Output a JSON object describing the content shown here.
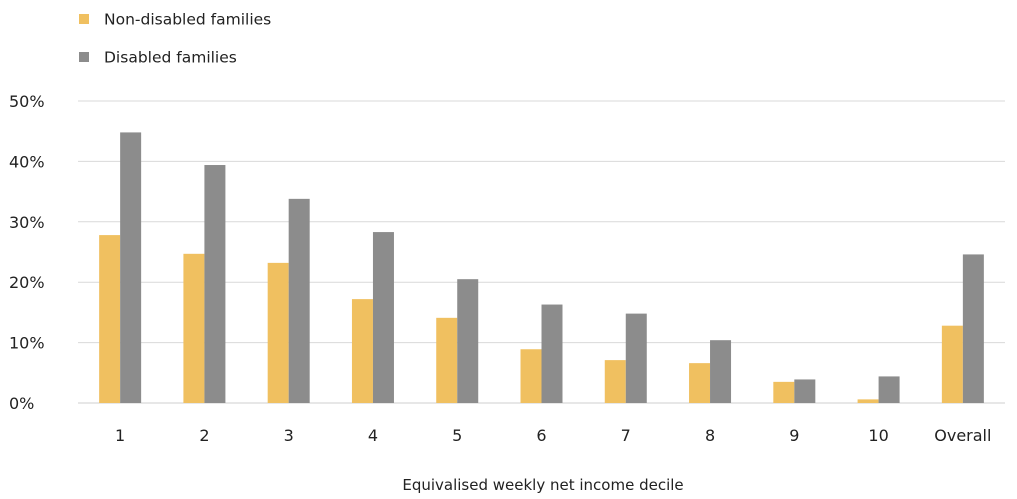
{
  "chart_data": {
    "type": "bar",
    "categories": [
      "1",
      "2",
      "3",
      "4",
      "5",
      "6",
      "7",
      "8",
      "9",
      "10",
      "Overall"
    ],
    "series": [
      {
        "name": "Non-disabled families",
        "color": "#f0c060",
        "values": [
          27.8,
          24.7,
          23.2,
          17.2,
          14.1,
          8.9,
          7.1,
          6.6,
          3.5,
          0.6,
          12.8
        ]
      },
      {
        "name": "Disabled families",
        "color": "#8c8c8c",
        "values": [
          44.8,
          39.4,
          33.8,
          28.3,
          20.5,
          16.3,
          14.8,
          10.4,
          3.9,
          4.4,
          24.6
        ]
      }
    ],
    "xlabel": "Equivalised weekly net income decile",
    "ylabel": "",
    "ylim": [
      0,
      50
    ],
    "yticks": [
      0,
      10,
      20,
      30,
      40,
      50
    ],
    "ytick_labels": [
      "0%",
      "10%",
      "20%",
      "30%",
      "40%",
      "50%"
    ],
    "grid": true,
    "legend_position": "top-left",
    "gridline_color": "#d9d9d9"
  }
}
